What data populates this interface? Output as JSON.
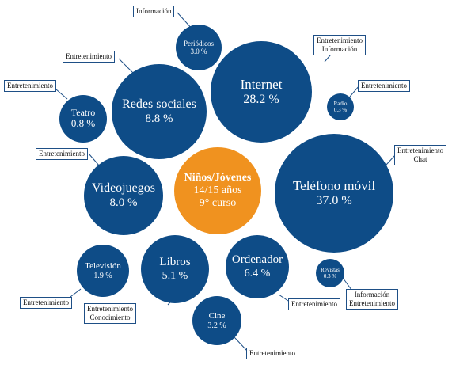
{
  "colors": {
    "bubble": "#0e4c87",
    "center": "#f0921f",
    "tag_border": "#1e4f86"
  },
  "center": {
    "line1": "Niños/Jóvenes",
    "line2": "14/15 años",
    "line3": "9° curso"
  },
  "bubbles": [
    {
      "name": "Teléfono móvil",
      "value": "37.0 %",
      "tags": [
        "Entretenimiento",
        "Chat"
      ]
    },
    {
      "name": "Internet",
      "value": "28.2 %",
      "tags": [
        "Entretenimiento",
        "Información"
      ]
    },
    {
      "name": "Redes sociales",
      "value": "8.8 %",
      "tags": [
        "Entretenimiento"
      ]
    },
    {
      "name": "Videojuegos",
      "value": "8.0 %",
      "tags": [
        "Entretenimiento"
      ]
    },
    {
      "name": "Ordenador",
      "value": "6.4 %",
      "tags": [
        "Entretenimiento"
      ]
    },
    {
      "name": "Libros",
      "value": "5.1 %",
      "tags": [
        "Entretenimiento",
        "Conocimiento"
      ]
    },
    {
      "name": "Cine",
      "value": "3.2 %",
      "tags": [
        "Entretenimiento"
      ]
    },
    {
      "name": "Periódicos",
      "value": "3.0 %",
      "tags": [
        "Información"
      ]
    },
    {
      "name": "Televisión",
      "value": "1.9 %",
      "tags": [
        "Entretenimiento"
      ]
    },
    {
      "name": "Teatro",
      "value": "0.8 %",
      "tags": [
        "Entretenimiento"
      ]
    },
    {
      "name": "Radio",
      "value": "0.3 %",
      "tags": [
        "Entretenimiento"
      ]
    },
    {
      "name": "Revistas",
      "value": "0.3 %",
      "tags": [
        "Información",
        "Entretenimiento"
      ]
    }
  ]
}
